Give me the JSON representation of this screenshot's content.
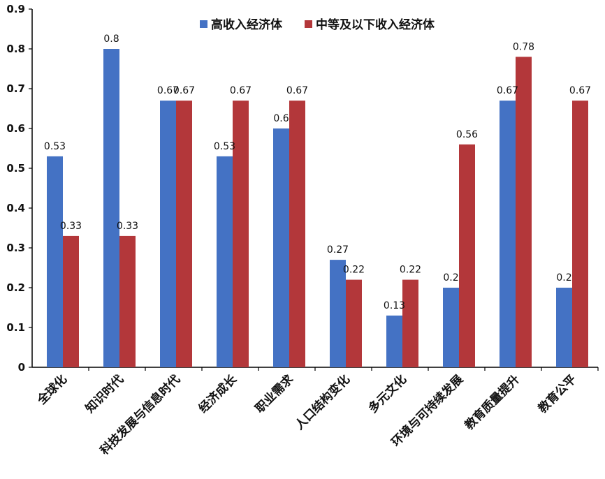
{
  "chart_data": {
    "type": "bar",
    "categories": [
      "全球化",
      "知识时代",
      "科技发展与信息时代",
      "经济成长",
      "职业需求",
      "人口结构变化",
      "多元文化",
      "环境与可持续发展",
      "教育质量提升",
      "教育公平"
    ],
    "series": [
      {
        "name": "高收入经济体",
        "color": "#4472C4",
        "values": [
          0.53,
          0.8,
          0.67,
          0.53,
          0.6,
          0.27,
          0.13,
          0.2,
          0.67,
          0.2
        ]
      },
      {
        "name": "中等及以下收入经济体",
        "color": "#B3373A",
        "values": [
          0.33,
          0.33,
          0.67,
          0.67,
          0.67,
          0.22,
          0.22,
          0.56,
          0.78,
          0.67
        ]
      }
    ],
    "ylim": [
      0,
      0.9
    ],
    "yticks": [
      "0",
      "0.1",
      "0.2",
      "0.3",
      "0.4",
      "0.5",
      "0.6",
      "0.7",
      "0.8",
      "0.9"
    ],
    "grid": false,
    "legend_position": "top-right"
  }
}
